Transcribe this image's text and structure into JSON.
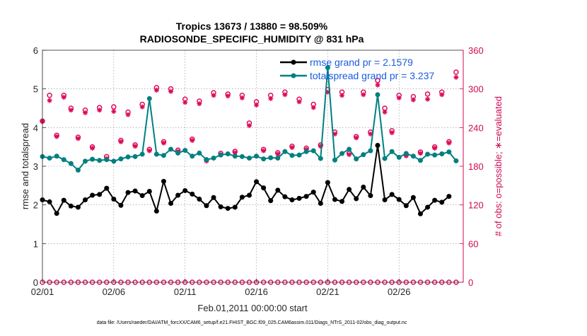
{
  "chart_data": {
    "type": "line",
    "title_line1": "Tropics 13673 / 13880 = 98.509%",
    "title_line2": "RADIOSONDE_SPECIFIC_HUMIDITY @ 831 hPa",
    "xlabel": "Feb.01,2011 00:00:00 start",
    "ylabel_left": "rmse and totalspread",
    "ylabel_right": "# of obs: o=possible; ∗=evaluated",
    "footer": "data file: /Users/raeder/DAI/ATM_forcXX/CAM6_setup/f.e21.FHIST_BGC.f09_025.CAM6assim.011/Diags_NTrS_2011-02/obs_diag_output.nc",
    "xlim": [
      0,
      29.5
    ],
    "ylim_left": [
      0,
      6
    ],
    "ylim_right": [
      0,
      360
    ],
    "x_ticks": [
      0,
      5,
      10,
      15,
      20,
      25
    ],
    "x_tick_labels": [
      "02/01",
      "02/06",
      "02/11",
      "02/16",
      "02/21",
      "02/26"
    ],
    "y_left_ticks": [
      "0",
      "1",
      "2",
      "3",
      "4",
      "5",
      "6"
    ],
    "y_right_ticks": [
      "0",
      "60",
      "120",
      "180",
      "240",
      "300",
      "360"
    ],
    "legend": {
      "rmse": "rmse grand pr = 2.1579",
      "spread": "totalspread grand pr = 3.237"
    },
    "colors": {
      "rmse": "#000000",
      "spread": "#008080",
      "obs": "#dd0a5b",
      "legend_text": "#1a5ce0",
      "right_axis": "#cc0a52"
    },
    "series": [
      {
        "name": "rmse",
        "x": [
          0.0,
          0.5,
          1.0,
          1.5,
          2.0,
          2.5,
          3.0,
          3.5,
          4.0,
          4.5,
          5.0,
          5.5,
          6.0,
          6.5,
          7.0,
          7.5,
          8.0,
          8.5,
          9.0,
          9.5,
          10.0,
          10.5,
          11.0,
          11.5,
          12.0,
          12.5,
          13.0,
          13.5,
          14.0,
          14.5,
          15.0,
          15.5,
          16.0,
          16.5,
          17.0,
          17.5,
          18.0,
          18.5,
          19.0,
          19.5,
          20.0,
          20.5,
          21.0,
          21.5,
          22.0,
          22.5,
          23.0,
          23.5,
          24.0,
          24.5,
          25.0,
          25.5,
          26.0,
          26.5,
          27.0,
          27.5,
          28.0,
          28.5,
          29.0
        ],
        "values": [
          2.13,
          2.08,
          1.78,
          2.12,
          1.97,
          1.94,
          2.13,
          2.25,
          2.27,
          2.43,
          2.15,
          1.99,
          2.32,
          2.36,
          2.24,
          2.35,
          1.84,
          2.61,
          2.04,
          2.25,
          2.37,
          2.28,
          2.15,
          1.98,
          2.19,
          1.95,
          1.91,
          1.94,
          2.2,
          2.25,
          2.6,
          2.44,
          2.11,
          2.38,
          2.21,
          2.13,
          2.17,
          2.22,
          2.33,
          2.04,
          2.58,
          2.14,
          2.09,
          2.4,
          2.16,
          2.46,
          2.24,
          3.54,
          2.13,
          2.27,
          2.14,
          1.98,
          2.19,
          1.77,
          1.94,
          2.12,
          2.07,
          2.22,
          null
        ]
      },
      {
        "name": "totalspread",
        "x": [
          0.0,
          0.5,
          1.0,
          1.5,
          2.0,
          2.5,
          3.0,
          3.5,
          4.0,
          4.5,
          5.0,
          5.5,
          6.0,
          6.5,
          7.0,
          7.5,
          8.0,
          8.5,
          9.0,
          9.5,
          10.0,
          10.5,
          11.0,
          11.5,
          12.0,
          12.5,
          13.0,
          13.5,
          14.0,
          14.5,
          15.0,
          15.5,
          16.0,
          16.5,
          17.0,
          17.5,
          18.0,
          18.5,
          19.0,
          19.5,
          20.0,
          20.5,
          21.0,
          21.5,
          22.0,
          22.5,
          23.0,
          23.5,
          24.0,
          24.5,
          25.0,
          25.5,
          26.0,
          26.5,
          27.0,
          27.5,
          28.0,
          28.5,
          29.0
        ],
        "values": [
          3.25,
          3.21,
          3.26,
          3.17,
          3.07,
          2.9,
          3.13,
          3.18,
          3.15,
          3.17,
          3.13,
          3.19,
          3.24,
          3.25,
          3.31,
          4.75,
          3.31,
          3.28,
          3.44,
          3.34,
          3.41,
          3.26,
          3.34,
          3.17,
          3.21,
          3.29,
          3.32,
          3.26,
          3.25,
          3.21,
          3.26,
          3.19,
          3.22,
          3.21,
          3.38,
          3.28,
          3.29,
          3.38,
          3.4,
          3.2,
          5.55,
          3.16,
          3.33,
          3.44,
          3.19,
          3.3,
          3.4,
          4.85,
          3.2,
          3.38,
          3.23,
          3.33,
          3.26,
          3.15,
          3.31,
          3.29,
          3.32,
          3.37,
          3.14
        ]
      },
      {
        "name": "obs_possible",
        "x": [
          0.0,
          0.5,
          1.0,
          1.5,
          2.0,
          2.5,
          3.0,
          3.5,
          4.0,
          4.5,
          5.0,
          5.5,
          6.0,
          6.5,
          7.0,
          7.5,
          8.0,
          8.5,
          9.0,
          9.5,
          10.0,
          10.5,
          11.0,
          11.5,
          12.0,
          12.5,
          13.0,
          13.5,
          14.0,
          14.5,
          15.0,
          15.5,
          16.0,
          16.5,
          17.0,
          17.5,
          18.0,
          18.5,
          19.0,
          19.5,
          20.0,
          20.5,
          21.0,
          21.5,
          22.0,
          22.5,
          23.0,
          23.5,
          24.0,
          24.5,
          25.0,
          25.5,
          26.0,
          26.5,
          27.0,
          27.5,
          28.0,
          28.5,
          29.0
        ],
        "values": [
          250,
          290,
          228,
          290,
          270,
          225,
          267,
          210,
          271,
          195,
          272,
          220,
          264,
          213,
          276,
          206,
          302,
          218,
          300,
          205,
          284,
          222,
          281,
          190,
          294,
          200,
          292,
          203,
          290,
          247,
          280,
          206,
          290,
          201,
          295,
          211,
          284,
          208,
          276,
          213,
          299,
          233,
          295,
          200,
          226,
          295,
          233,
          313,
          270,
          235,
          290,
          198,
          288,
          202,
          292,
          210,
          295,
          218,
          326
        ]
      },
      {
        "name": "obs_evaluated",
        "x": [
          0.0,
          0.5,
          1.0,
          1.5,
          2.0,
          2.5,
          3.0,
          3.5,
          4.0,
          4.5,
          5.0,
          5.5,
          6.0,
          6.5,
          7.0,
          7.5,
          8.0,
          8.5,
          9.0,
          9.5,
          10.0,
          10.5,
          11.0,
          11.5,
          12.0,
          12.5,
          13.0,
          13.5,
          14.0,
          14.5,
          15.0,
          15.5,
          16.0,
          16.5,
          17.0,
          17.5,
          18.0,
          18.5,
          19.0,
          19.5,
          20.0,
          20.5,
          21.0,
          21.5,
          22.0,
          22.5,
          23.0,
          23.5,
          24.0,
          24.5,
          25.0,
          25.5,
          26.0,
          26.5,
          27.0,
          27.5,
          28.0,
          28.5,
          29.0
        ],
        "values": [
          250,
          282,
          226,
          287,
          267,
          223,
          263,
          208,
          267,
          192,
          265,
          218,
          260,
          211,
          272,
          204,
          298,
          216,
          296,
          203,
          279,
          220,
          277,
          188,
          290,
          198,
          289,
          201,
          286,
          243,
          275,
          204,
          285,
          199,
          291,
          209,
          280,
          206,
          271,
          211,
          295,
          230,
          290,
          198,
          224,
          291,
          230,
          306,
          264,
          232,
          286,
          196,
          283,
          200,
          284,
          208,
          291,
          216,
          318
        ]
      }
    ]
  }
}
